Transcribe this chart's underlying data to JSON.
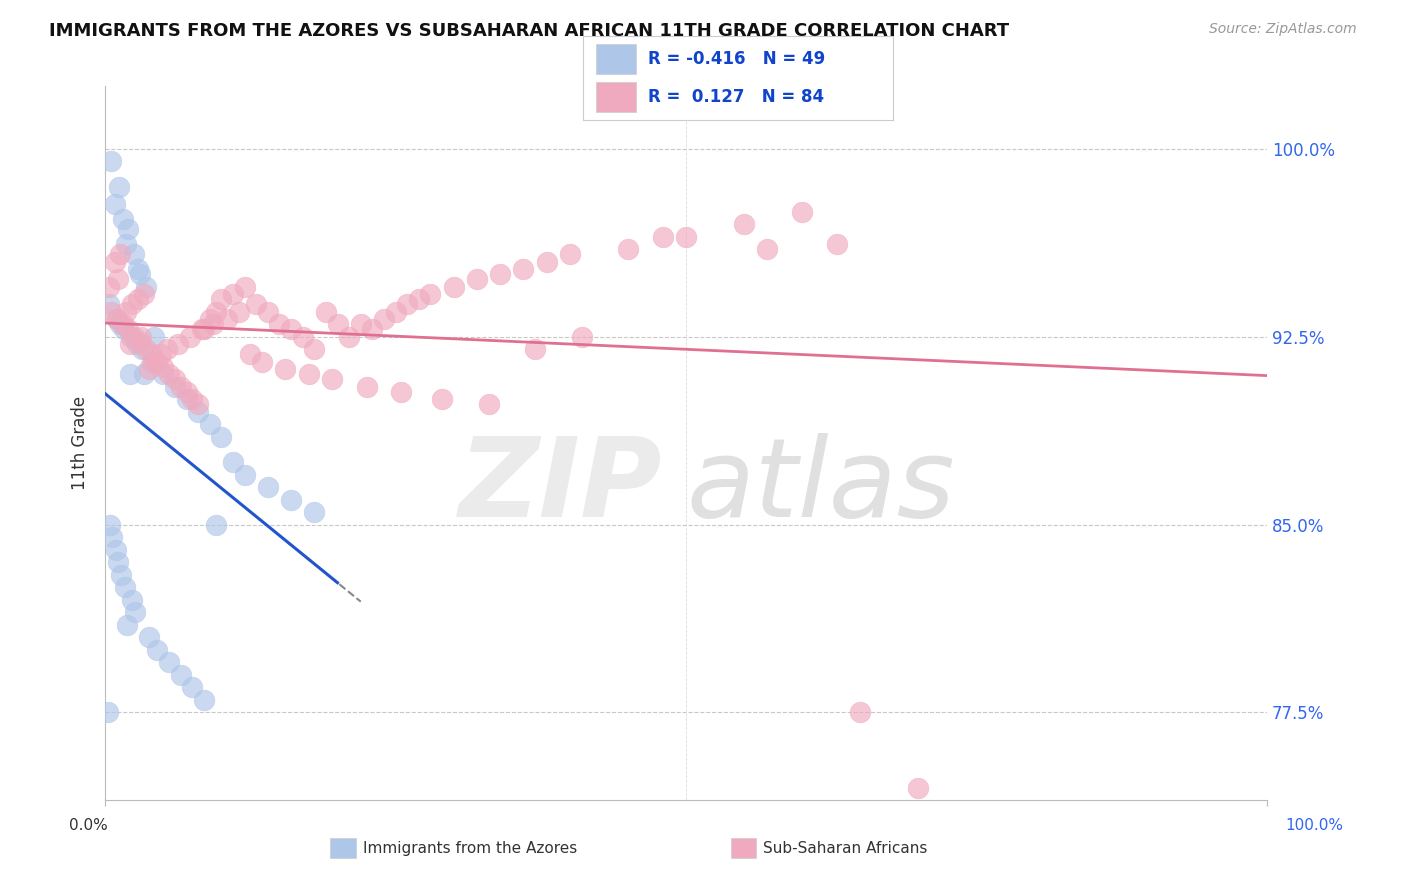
{
  "title": "IMMIGRANTS FROM THE AZORES VS SUBSAHARAN AFRICAN 11TH GRADE CORRELATION CHART",
  "source": "Source: ZipAtlas.com",
  "ylabel": "11th Grade",
  "xlim": [
    0,
    100
  ],
  "ylim": [
    74.0,
    102.5
  ],
  "yticks": [
    77.5,
    85.0,
    92.5,
    100.0
  ],
  "ytick_labels": [
    "77.5%",
    "85.0%",
    "92.5%",
    "100.0%"
  ],
  "legend_blue_R": -0.416,
  "legend_blue_N": 49,
  "legend_pink_R": 0.127,
  "legend_pink_N": 84,
  "blue_face_color": "#aec6e8",
  "blue_edge_color": "#aec6e8",
  "blue_line_color": "#2255cc",
  "pink_face_color": "#f0aabf",
  "pink_edge_color": "#f0aabf",
  "pink_line_color": "#e07090",
  "blue_scatter_x": [
    0.3,
    0.5,
    0.8,
    1.0,
    1.2,
    1.3,
    1.5,
    1.6,
    1.7,
    1.8,
    1.9,
    2.0,
    2.2,
    2.3,
    2.5,
    2.6,
    2.7,
    2.8,
    3.0,
    3.2,
    3.3,
    3.5,
    3.8,
    4.0,
    4.2,
    4.5,
    5.0,
    5.5,
    6.0,
    6.5,
    7.0,
    7.5,
    8.0,
    8.5,
    9.0,
    9.5,
    10.0,
    11.0,
    12.0,
    14.0,
    16.0,
    18.0,
    0.4,
    0.6,
    0.9,
    1.1,
    1.4,
    2.1,
    0.2
  ],
  "blue_scatter_y": [
    93.8,
    99.5,
    97.8,
    93.2,
    98.5,
    93.0,
    97.2,
    92.8,
    82.5,
    96.2,
    81.0,
    96.8,
    92.5,
    82.0,
    95.8,
    81.5,
    92.2,
    95.2,
    95.0,
    92.0,
    91.0,
    94.5,
    80.5,
    91.5,
    92.5,
    80.0,
    91.0,
    79.5,
    90.5,
    79.0,
    90.0,
    78.5,
    89.5,
    78.0,
    89.0,
    85.0,
    88.5,
    87.5,
    87.0,
    86.5,
    86.0,
    85.5,
    85.0,
    84.5,
    84.0,
    83.5,
    83.0,
    91.0,
    77.5
  ],
  "pink_scatter_x": [
    0.5,
    1.0,
    1.5,
    2.0,
    2.5,
    3.0,
    3.5,
    4.0,
    4.5,
    5.0,
    5.5,
    6.0,
    6.5,
    7.0,
    7.5,
    8.0,
    8.5,
    9.0,
    9.5,
    10.0,
    11.0,
    12.0,
    13.0,
    14.0,
    15.0,
    16.0,
    17.0,
    18.0,
    19.0,
    20.0,
    21.0,
    22.0,
    23.0,
    24.0,
    25.0,
    26.0,
    27.0,
    28.0,
    30.0,
    32.0,
    34.0,
    36.0,
    38.0,
    40.0,
    45.0,
    50.0,
    55.0,
    60.0,
    65.0,
    70.0,
    0.8,
    1.3,
    1.8,
    2.3,
    2.8,
    3.3,
    3.8,
    4.3,
    4.8,
    5.3,
    6.3,
    7.3,
    8.3,
    9.3,
    10.5,
    11.5,
    12.5,
    13.5,
    15.5,
    17.5,
    19.5,
    22.5,
    25.5,
    29.0,
    33.0,
    37.0,
    41.0,
    48.0,
    57.0,
    63.0,
    0.3,
    1.1,
    2.1,
    3.1
  ],
  "pink_scatter_y": [
    93.5,
    93.2,
    93.0,
    92.8,
    92.5,
    92.3,
    92.0,
    91.8,
    91.5,
    91.3,
    91.0,
    90.8,
    90.5,
    90.3,
    90.0,
    89.8,
    92.8,
    93.2,
    93.5,
    94.0,
    94.2,
    94.5,
    93.8,
    93.5,
    93.0,
    92.8,
    92.5,
    92.0,
    93.5,
    93.0,
    92.5,
    93.0,
    92.8,
    93.2,
    93.5,
    93.8,
    94.0,
    94.2,
    94.5,
    94.8,
    95.0,
    95.2,
    95.5,
    95.8,
    96.0,
    96.5,
    97.0,
    97.5,
    77.5,
    74.5,
    95.5,
    95.8,
    93.5,
    93.8,
    94.0,
    94.2,
    91.2,
    91.5,
    91.8,
    92.0,
    92.2,
    92.5,
    92.8,
    93.0,
    93.2,
    93.5,
    91.8,
    91.5,
    91.2,
    91.0,
    90.8,
    90.5,
    90.3,
    90.0,
    89.8,
    92.0,
    92.5,
    96.5,
    96.0,
    96.2,
    94.5,
    94.8,
    92.2,
    92.5
  ]
}
